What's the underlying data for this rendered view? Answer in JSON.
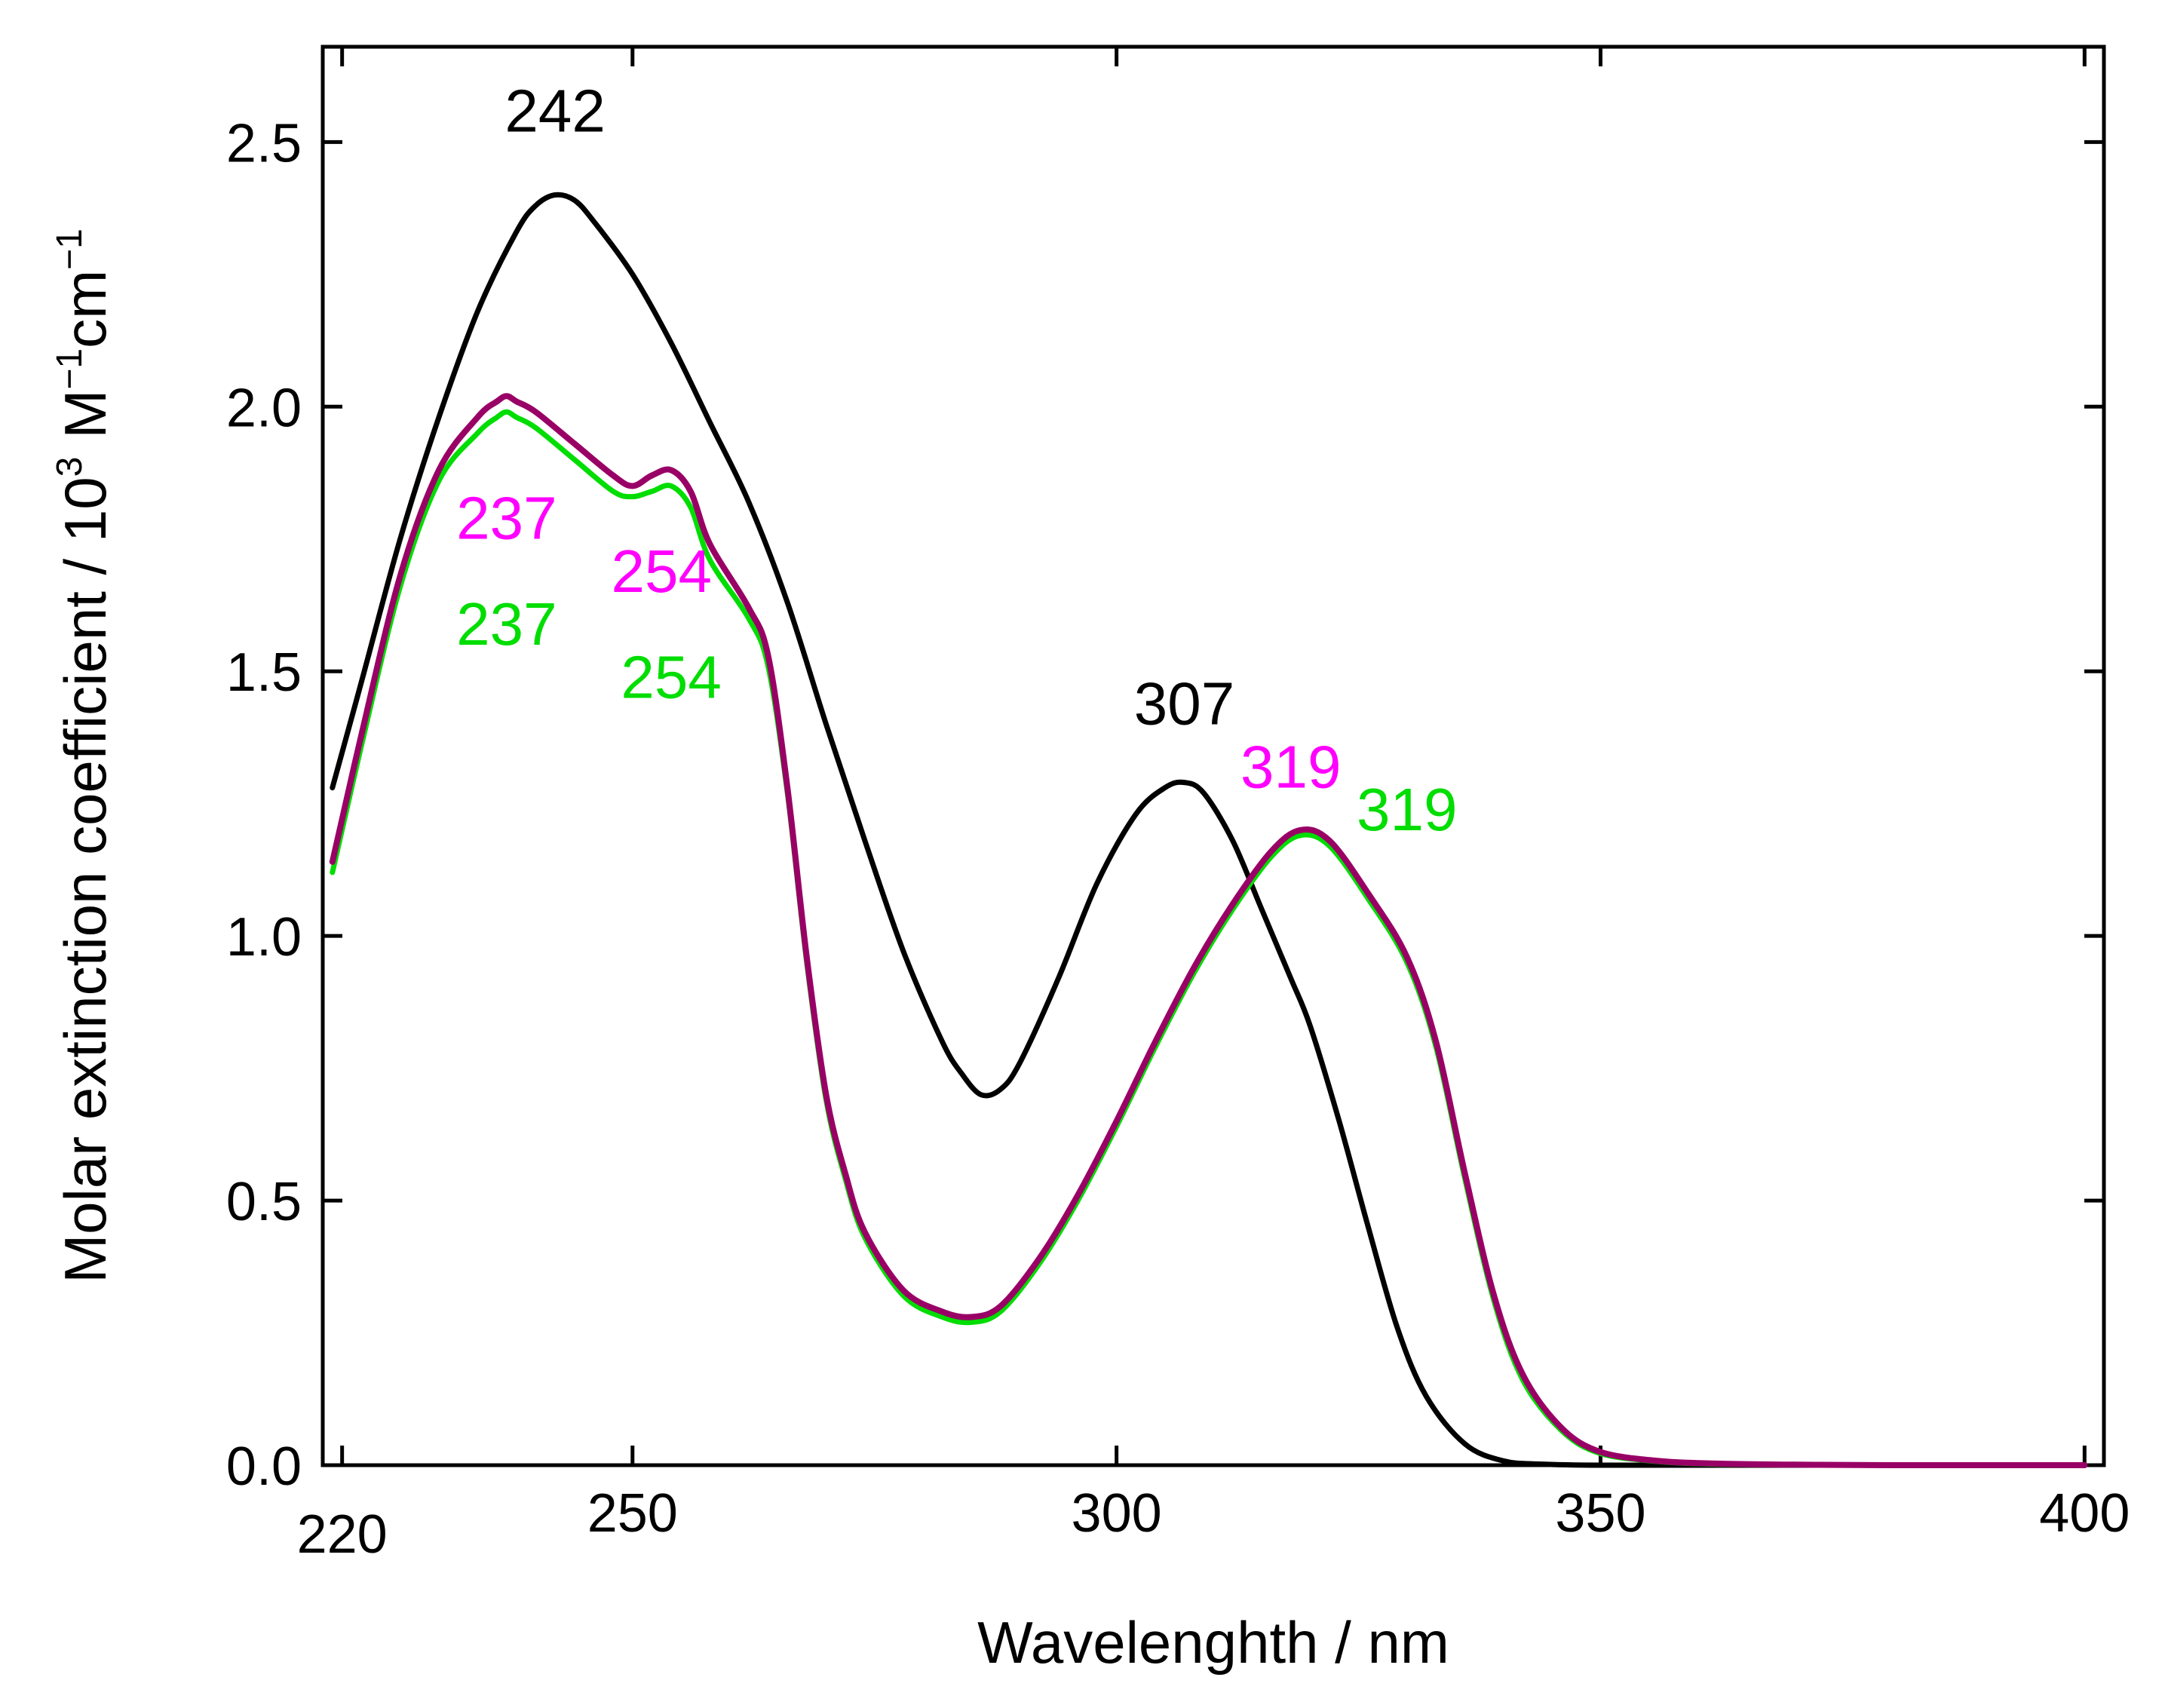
{
  "chart_data": {
    "type": "line",
    "xlabel": "Wavelenghth / nm",
    "ylabel": {
      "prefix": "Molar extinction coefficient / 10",
      "exp1": "3",
      "mid": "M",
      "exp2": "−1",
      "unit": "cm",
      "exp3": "−1"
    },
    "xlim": [
      218,
      402
    ],
    "ylim": [
      0,
      2.68
    ],
    "x_ticks": [
      220,
      250,
      300,
      350,
      400
    ],
    "x_tick_labels": [
      "220",
      "250",
      "300",
      "350",
      "400"
    ],
    "y_ticks": [
      0.0,
      0.5,
      1.0,
      1.5,
      2.0,
      2.5
    ],
    "y_tick_labels": [
      "0.0",
      "0.5",
      "1.0",
      "1.5",
      "2.0",
      "2.5"
    ],
    "series": [
      {
        "name": "black",
        "color": "#000000",
        "x": [
          219,
          222,
          226,
          230,
          234,
          238,
          240,
          242,
          244,
          246,
          250,
          254,
          258,
          262,
          266,
          270,
          274,
          278,
          282,
          284,
          286,
          288,
          290,
          294,
          298,
          302,
          305,
          307,
          309,
          312,
          315,
          318,
          320,
          323,
          326,
          329,
          332,
          336,
          340,
          344,
          350,
          360,
          380,
          400
        ],
        "y": [
          1.28,
          1.48,
          1.75,
          1.98,
          2.18,
          2.33,
          2.38,
          2.4,
          2.39,
          2.35,
          2.25,
          2.12,
          1.97,
          1.82,
          1.63,
          1.4,
          1.18,
          0.97,
          0.8,
          0.74,
          0.7,
          0.71,
          0.76,
          0.92,
          1.1,
          1.23,
          1.28,
          1.29,
          1.27,
          1.18,
          1.05,
          0.92,
          0.83,
          0.65,
          0.45,
          0.26,
          0.13,
          0.04,
          0.008,
          0.002,
          0.0,
          0.0,
          0.0,
          0.0
        ]
      },
      {
        "name": "magenta",
        "color": "#990066",
        "x": [
          219,
          222,
          226,
          230,
          234,
          236,
          237,
          238,
          240,
          244,
          248,
          250,
          252,
          254,
          256,
          258,
          262,
          264,
          266,
          268,
          270,
          272,
          274,
          278,
          282,
          285,
          288,
          292,
          296,
          300,
          304,
          308,
          312,
          316,
          319,
          322,
          326,
          330,
          333,
          336,
          339,
          342,
          346,
          350,
          356,
          362,
          370,
          380,
          400
        ],
        "y": [
          1.14,
          1.38,
          1.68,
          1.88,
          1.98,
          2.01,
          2.02,
          2.01,
          1.99,
          1.93,
          1.87,
          1.85,
          1.87,
          1.88,
          1.84,
          1.74,
          1.62,
          1.53,
          1.28,
          0.96,
          0.7,
          0.55,
          0.44,
          0.33,
          0.29,
          0.28,
          0.3,
          0.39,
          0.51,
          0.65,
          0.8,
          0.94,
          1.06,
          1.16,
          1.2,
          1.18,
          1.08,
          0.96,
          0.8,
          0.55,
          0.32,
          0.17,
          0.07,
          0.025,
          0.008,
          0.003,
          0.001,
          0.0,
          0.0
        ]
      },
      {
        "name": "green",
        "color": "#00dd00",
        "x": [
          219,
          222,
          226,
          230,
          234,
          236,
          237,
          238,
          240,
          244,
          248,
          250,
          252,
          254,
          256,
          258,
          262,
          264,
          266,
          268,
          270,
          272,
          274,
          278,
          282,
          285,
          288,
          292,
          296,
          300,
          304,
          308,
          312,
          316,
          319,
          322,
          326,
          330,
          333,
          336,
          339,
          342,
          346,
          350,
          356,
          362,
          370,
          380,
          400
        ],
        "y": [
          1.12,
          1.36,
          1.66,
          1.86,
          1.95,
          1.98,
          1.99,
          1.98,
          1.96,
          1.9,
          1.84,
          1.83,
          1.84,
          1.85,
          1.81,
          1.71,
          1.6,
          1.51,
          1.27,
          0.95,
          0.69,
          0.54,
          0.43,
          0.32,
          0.28,
          0.27,
          0.29,
          0.38,
          0.5,
          0.64,
          0.79,
          0.93,
          1.05,
          1.15,
          1.19,
          1.17,
          1.07,
          0.95,
          0.79,
          0.54,
          0.31,
          0.16,
          0.065,
          0.022,
          0.007,
          0.002,
          0.001,
          0.0,
          0.0
        ]
      }
    ],
    "annotations": [
      {
        "text": "242",
        "color": "#000000",
        "x": 242,
        "y": 2.52
      },
      {
        "text": "307",
        "color": "#000000",
        "x": 307,
        "y": 1.4
      },
      {
        "text": "237",
        "color": "#ff00ff",
        "x": 237,
        "y": 1.75
      },
      {
        "text": "254",
        "color": "#ff00ff",
        "x": 253,
        "y": 1.65
      },
      {
        "text": "319",
        "color": "#ff00ff",
        "x": 318,
        "y": 1.28
      },
      {
        "text": "237",
        "color": "#00dd00",
        "x": 237,
        "y": 1.55
      },
      {
        "text": "254",
        "color": "#00dd00",
        "x": 254,
        "y": 1.45
      },
      {
        "text": "319",
        "color": "#00dd00",
        "x": 330,
        "y": 1.2
      }
    ]
  }
}
